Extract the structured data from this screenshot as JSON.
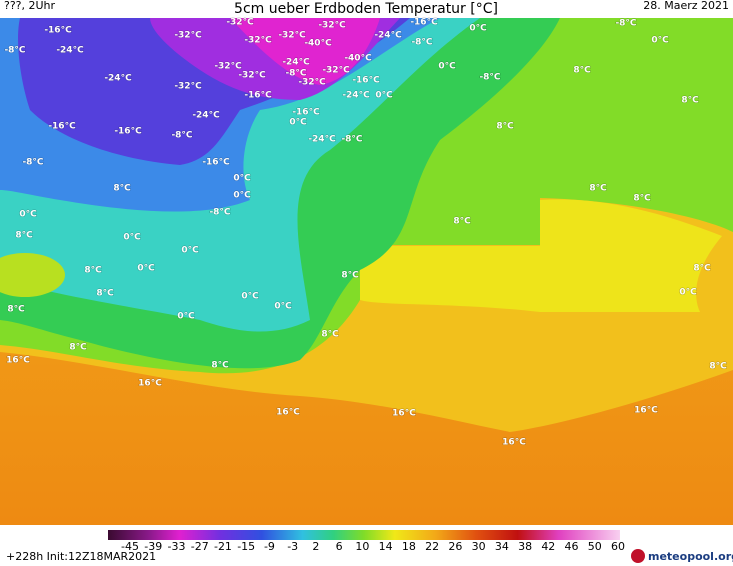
{
  "header": {
    "left": "???, 2Uhr",
    "title": "5cm ueber Erdboden Temperatur [°C]",
    "date": "28. Maerz 2021"
  },
  "map_labels": [
    "-16°C",
    "-24°C",
    "-8°C",
    "-32°C",
    "-32°C",
    "-32°C",
    "-32°C",
    "-40°C",
    "-32°C",
    "-24°C",
    "-16°C",
    "-8°C",
    "0°C",
    "-8°C",
    "0°C",
    "-24°C",
    "-32°C",
    "-32°C",
    "-32°C",
    "-24°C",
    "-8°C",
    "-32°C",
    "-40°C",
    "-32°C",
    "-16°C",
    "-24°C",
    "0°C",
    "0°C",
    "-8°C",
    "8°C",
    "8°C",
    "-16°C",
    "-24°C",
    "-16°C",
    "0°C",
    "-16°C",
    "-16°C",
    "-8°C",
    "-24°C",
    "-8°C",
    "8°C",
    "-8°C",
    "-16°C",
    "0°C",
    "8°C",
    "8°C",
    "8°C",
    "-8°C",
    "0°C",
    "0°C",
    "8°C",
    "8°C",
    "0°C",
    "0°C",
    "0°C",
    "8°C",
    "8°C",
    "8°C",
    "8°C",
    "0°C",
    "0°C",
    "0°C",
    "0°C",
    "8°C",
    "8°C",
    "8°C",
    "16°C",
    "8°C",
    "8°C",
    "16°C",
    "16°C",
    "16°C",
    "16°C",
    "16°C"
  ],
  "colorbar": {
    "ticks": [
      -45,
      -39,
      -33,
      -27,
      -21,
      -15,
      -9,
      -3,
      2,
      6,
      10,
      14,
      18,
      22,
      26,
      30,
      34,
      38,
      42,
      46,
      50,
      60
    ]
  },
  "footer": {
    "run": "+228h Init:12Z18MAR2021",
    "brand": "meteopool.org"
  }
}
